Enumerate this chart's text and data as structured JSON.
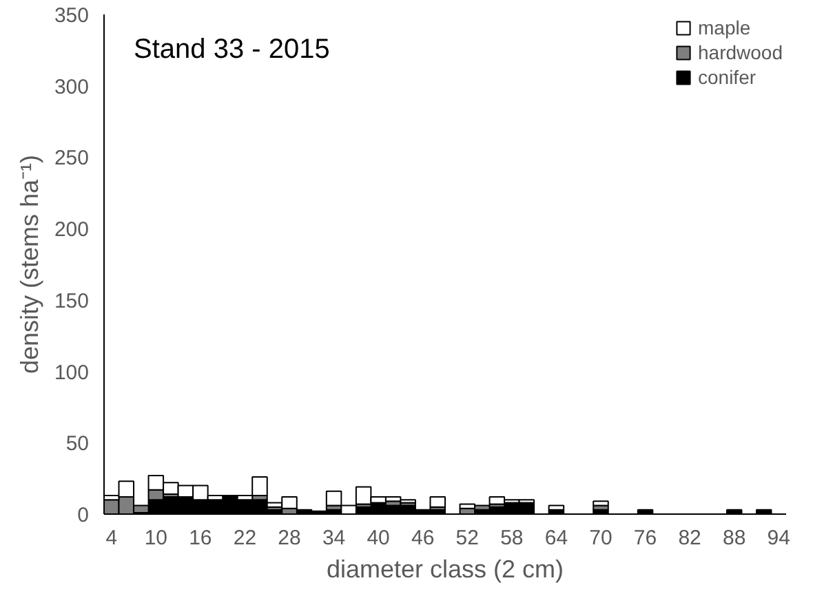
{
  "chart_data": {
    "type": "bar",
    "stacked": true,
    "title": "Stand 33 - 2015",
    "xlabel": "diameter class (2 cm)",
    "ylabel": "density (stems ha⁻¹)",
    "categories": [
      "4",
      null,
      null,
      "10",
      null,
      null,
      "16",
      null,
      null,
      "22",
      null,
      null,
      "28",
      null,
      null,
      "34",
      null,
      null,
      "40",
      null,
      null,
      "46",
      null,
      null,
      "52",
      null,
      null,
      "58",
      null,
      null,
      "64",
      null,
      null,
      "70",
      null,
      null,
      "76",
      null,
      null,
      "82",
      null,
      null,
      "88",
      null,
      null,
      "94"
    ],
    "series": [
      {
        "name": "conifer",
        "color": "#000000",
        "values": [
          0,
          0,
          1,
          10,
          12,
          12,
          10,
          10,
          13,
          10,
          10,
          3,
          0,
          3,
          2,
          3,
          0,
          5,
          8,
          6,
          6,
          3,
          3,
          0,
          0,
          3,
          5,
          8,
          8,
          0,
          3,
          0,
          0,
          3,
          0,
          0,
          3,
          0,
          0,
          0,
          0,
          0,
          3,
          0,
          3,
          0
        ]
      },
      {
        "name": "hardwood",
        "color": "#7f7f7f",
        "values": [
          10,
          12,
          5,
          7,
          2,
          0,
          0,
          0,
          0,
          0,
          3,
          2,
          4,
          0,
          0,
          3,
          0,
          2,
          0,
          3,
          2,
          0,
          2,
          0,
          4,
          3,
          2,
          0,
          0,
          0,
          0,
          0,
          0,
          3,
          0,
          0,
          0,
          0,
          0,
          0,
          0,
          0,
          0,
          0,
          0,
          0
        ]
      },
      {
        "name": "maple",
        "color": "#ffffff",
        "values": [
          3,
          11,
          0,
          10,
          8,
          8,
          10,
          3,
          0,
          3,
          13,
          3,
          8,
          0,
          0,
          10,
          6,
          12,
          4,
          3,
          2,
          0,
          7,
          0,
          3,
          0,
          5,
          2,
          2,
          0,
          3,
          0,
          0,
          3,
          0,
          0,
          0,
          0,
          0,
          0,
          0,
          0,
          0,
          0,
          0,
          0
        ]
      }
    ],
    "ylim": [
      0,
      350
    ],
    "yticks": [
      0,
      50,
      100,
      150,
      200,
      250,
      300,
      350
    ],
    "grid": false,
    "legend": "top right"
  }
}
